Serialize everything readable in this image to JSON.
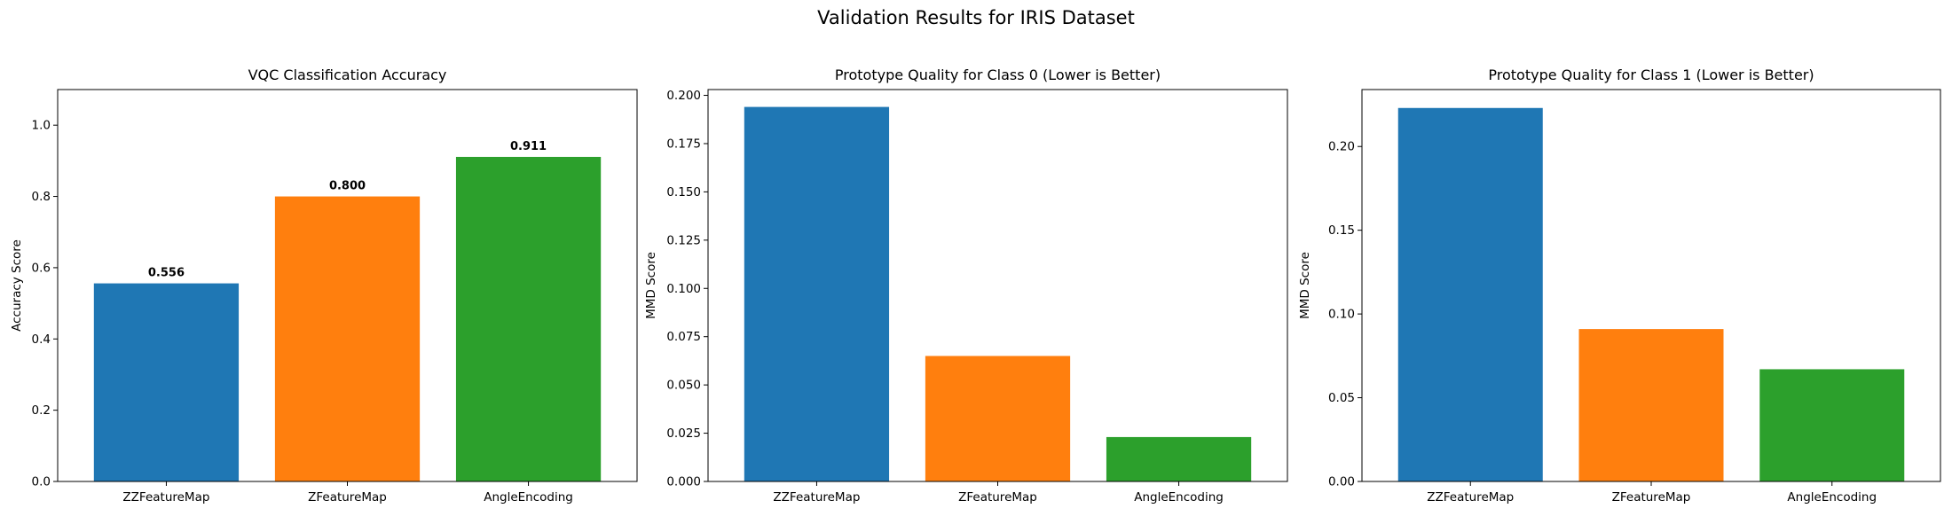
{
  "suptitle": "Validation Results for IRIS Dataset",
  "chart_data": [
    {
      "type": "bar",
      "title": "VQC Classification Accuracy",
      "xlabel": "",
      "ylabel": "Accuracy Score",
      "categories": [
        "ZZFeatureMap",
        "ZFeatureMap",
        "AngleEncoding"
      ],
      "values": [
        0.556,
        0.8,
        0.911
      ],
      "value_labels": [
        "0.556",
        "0.800",
        "0.911"
      ],
      "colors": [
        "#1f77b4",
        "#ff7f0e",
        "#2ca02c"
      ],
      "ylim": [
        0,
        1.1
      ],
      "yticks": [
        0.0,
        0.2,
        0.4,
        0.6,
        0.8,
        1.0
      ],
      "ytick_labels": [
        "0.0",
        "0.2",
        "0.4",
        "0.6",
        "0.8",
        "1.0"
      ],
      "grid": false
    },
    {
      "type": "bar",
      "title": "Prototype Quality for Class 0 (Lower is Better)",
      "xlabel": "",
      "ylabel": "MMD Score",
      "categories": [
        "ZZFeatureMap",
        "ZFeatureMap",
        "AngleEncoding"
      ],
      "values": [
        0.194,
        0.065,
        0.023
      ],
      "colors": [
        "#1f77b4",
        "#ff7f0e",
        "#2ca02c"
      ],
      "ylim": [
        0,
        0.203
      ],
      "yticks": [
        0.0,
        0.025,
        0.05,
        0.075,
        0.1,
        0.125,
        0.15,
        0.175,
        0.2
      ],
      "ytick_labels": [
        "0.000",
        "0.025",
        "0.050",
        "0.075",
        "0.100",
        "0.125",
        "0.150",
        "0.175",
        "0.200"
      ],
      "grid": false
    },
    {
      "type": "bar",
      "title": "Prototype Quality for Class 1 (Lower is Better)",
      "xlabel": "",
      "ylabel": "MMD Score",
      "categories": [
        "ZZFeatureMap",
        "ZFeatureMap",
        "AngleEncoding"
      ],
      "values": [
        0.223,
        0.091,
        0.067
      ],
      "colors": [
        "#1f77b4",
        "#ff7f0e",
        "#2ca02c"
      ],
      "ylim": [
        0,
        0.234
      ],
      "yticks": [
        0.0,
        0.05,
        0.1,
        0.15,
        0.2
      ],
      "ytick_labels": [
        "0.00",
        "0.05",
        "0.10",
        "0.15",
        "0.20"
      ],
      "grid": false
    }
  ]
}
